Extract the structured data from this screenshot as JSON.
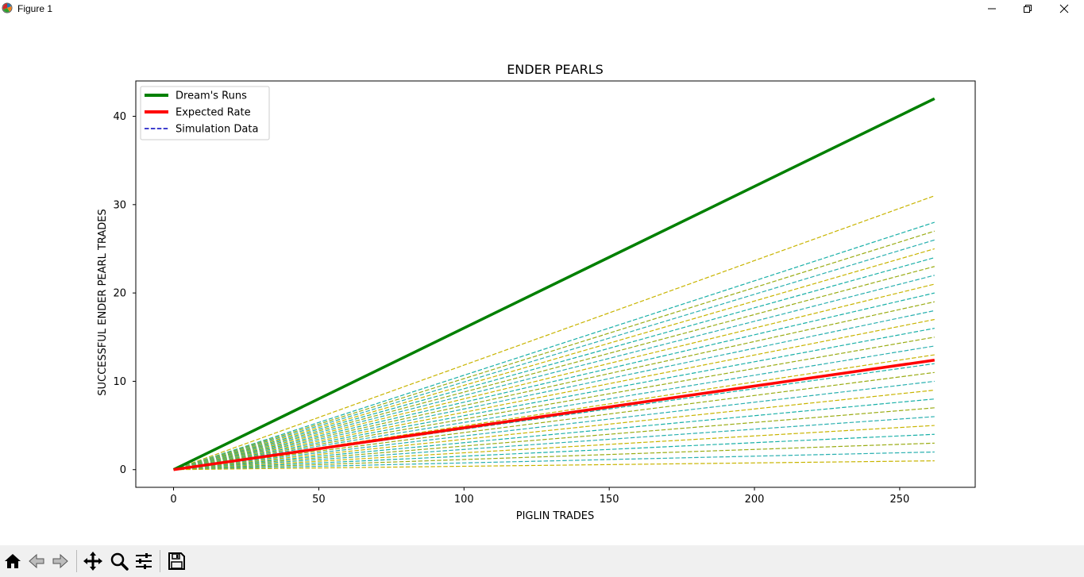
{
  "window": {
    "title": "Figure 1",
    "icons": {
      "app": "matplotlib-icon",
      "minimize": "minimize-icon",
      "maximize": "restore-icon",
      "close": "close-icon"
    }
  },
  "toolbar": {
    "buttons": [
      {
        "name": "home-button",
        "icon": "home-icon"
      },
      {
        "name": "back-button",
        "icon": "back-arrow-icon"
      },
      {
        "name": "forward-button",
        "icon": "forward-arrow-icon"
      },
      {
        "name": "pan-button",
        "icon": "move-icon"
      },
      {
        "name": "zoom-button",
        "icon": "magnifier-icon"
      },
      {
        "name": "configure-subplots-button",
        "icon": "sliders-icon"
      },
      {
        "name": "save-button",
        "icon": "floppy-disk-icon"
      }
    ]
  },
  "chart_data": {
    "type": "line",
    "title": "ENDER PEARLS",
    "xlabel": "PIGLIN TRADES",
    "ylabel": "SUCCESSFUL ENDER PEARL TRADES",
    "xlim": [
      -13,
      276
    ],
    "ylim": [
      -2,
      44
    ],
    "xticks": [
      0,
      50,
      100,
      150,
      200,
      250
    ],
    "yticks": [
      0,
      10,
      20,
      30,
      40
    ],
    "grid": false,
    "legend_position": "upper-left",
    "legend": [
      {
        "label": "Dream's Runs",
        "color": "#008000",
        "style": "solid"
      },
      {
        "label": "Expected Rate",
        "color": "#ff0000",
        "style": "solid"
      },
      {
        "label": "Simulation Data",
        "color": "#0000bf",
        "style": "dashed"
      }
    ],
    "series": [
      {
        "name": "Dream's Runs",
        "color": "#008000",
        "x": [
          0,
          262
        ],
        "y": [
          0,
          42
        ]
      },
      {
        "name": "Expected Rate",
        "color": "#ff0000",
        "x": [
          0,
          262
        ],
        "y": [
          0,
          12.4
        ]
      }
    ],
    "simulation": {
      "colors": [
        "#c8b400",
        "#1ab0a8",
        "#9aac14",
        "#2ab0b0"
      ],
      "x": [
        0,
        262
      ],
      "final_values": [
        31,
        28,
        27,
        26,
        25,
        24,
        23,
        22,
        21,
        20,
        19,
        18,
        17,
        16,
        15,
        14,
        13,
        12,
        11,
        10,
        9,
        8,
        7,
        6,
        5,
        4,
        3,
        2,
        1
      ]
    }
  }
}
